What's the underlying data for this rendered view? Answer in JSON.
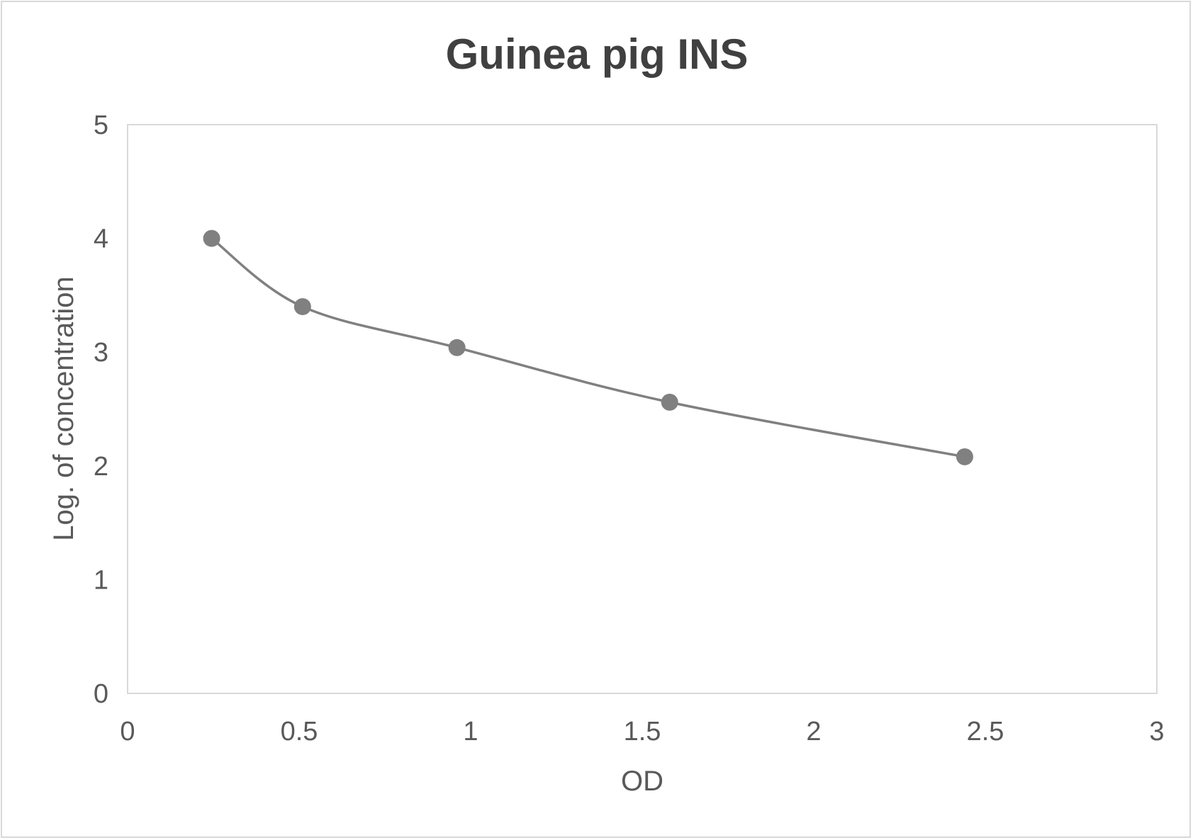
{
  "chart_data": {
    "type": "scatter",
    "title": "Guinea pig INS",
    "xlabel": "OD",
    "ylabel": "Log. of concentration",
    "xlim": [
      0,
      3
    ],
    "ylim": [
      0,
      5
    ],
    "x_ticks": [
      "0",
      "0.5",
      "1",
      "1.5",
      "2",
      "2.5",
      "3"
    ],
    "y_ticks": [
      "0",
      "1",
      "2",
      "3",
      "4",
      "5"
    ],
    "grid": false,
    "legend": "none",
    "line_style": "smoothed line with markers",
    "series": [
      {
        "color": "#808080",
        "points": [
          {
            "x": 0.245,
            "y": 4.0
          },
          {
            "x": 0.51,
            "y": 3.4
          },
          {
            "x": 0.96,
            "y": 3.04
          },
          {
            "x": 1.58,
            "y": 2.56
          },
          {
            "x": 2.44,
            "y": 2.08
          }
        ]
      }
    ]
  }
}
